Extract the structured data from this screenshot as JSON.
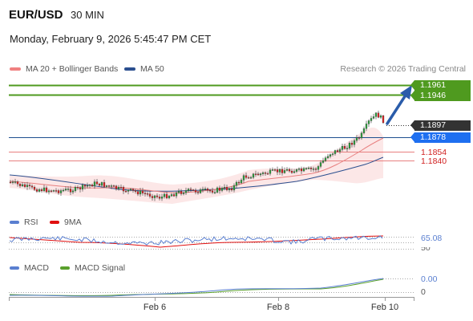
{
  "header": {
    "pair": "EUR/USD",
    "timeframe": "30 MIN",
    "datetime": "Monday, February 9, 2026 5:45:47 PM CET"
  },
  "legend_main": [
    {
      "label": "MA 20 + Bollinger Bands",
      "color": "#f08080"
    },
    {
      "label": "MA 50",
      "color": "#2b4f8f"
    }
  ],
  "credit": "Research © 2026 Trading Central",
  "levels": {
    "r2": "1.1961",
    "r1": "1.1946",
    "last": "1.1897",
    "pivot": "1.1878",
    "s1": "1.1854",
    "s2": "1.1840"
  },
  "legend_rsi": [
    {
      "label": "RSI",
      "color": "#5a7fd0"
    },
    {
      "label": "9MA",
      "color": "#e01010"
    }
  ],
  "rsi": {
    "value": "65.08",
    "ref_label": "50"
  },
  "legend_macd": [
    {
      "label": "MACD",
      "color": "#5a7fd0"
    },
    {
      "label": "MACD Signal",
      "color": "#5aa02c"
    }
  ],
  "macd": {
    "value": "0.00",
    "zero_label": "0"
  },
  "x_axis": [
    "Feb 6",
    "Feb 8",
    "Feb 10"
  ],
  "colors": {
    "up": "#2e9e3e",
    "down": "#d22",
    "resistance": "#4f9a1f",
    "pivot": "#1e4f8f",
    "support": "#e88080"
  },
  "chart_data": {
    "type": "candlestick",
    "x": [
      "Feb 6",
      "Feb 8",
      "Feb 10"
    ],
    "price_levels": [
      1.1961,
      1.1946,
      1.1897,
      1.1878,
      1.1854,
      1.184
    ],
    "last_price": 1.1897,
    "indicators": [
      "MA 20 + Bollinger Bands",
      "MA 50",
      "RSI",
      "9MA",
      "MACD",
      "MACD Signal"
    ]
  }
}
